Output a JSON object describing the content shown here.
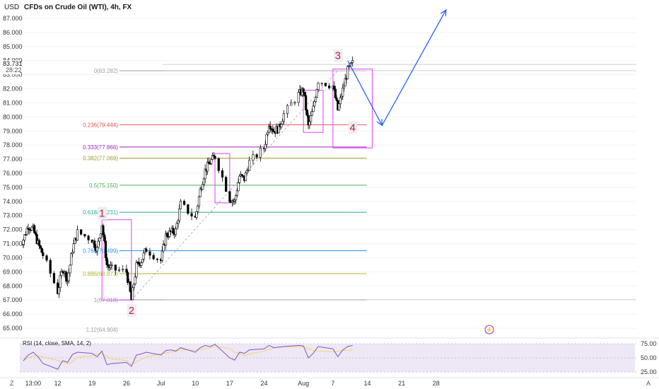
{
  "header": {
    "currency": "USD",
    "title": "CFDs on Crude Oil (WTI), 4h, FX"
  },
  "price_tags": {
    "last_price": "83.731",
    "countdown": "28:22"
  },
  "rsi_panel": {
    "title": "RSI (14, close, SMA, 14, 2)"
  },
  "footer": {
    "left_corner": "Z",
    "right_corner": "A"
  },
  "colors": {
    "up": "#ffffff",
    "down": "#000000",
    "wick": "#000000",
    "rsi_line": "#7e57c2",
    "rsi_band": "#ede7f6",
    "rsi_ma": "#f5d36b",
    "arrow": "#2962ff",
    "box": "#e040fb",
    "wave_label": "#c2185b"
  },
  "chart_data": {
    "type": "candlestick",
    "symbol": "CFDs on Crude Oil (WTI)",
    "interval": "4h",
    "ylim": [
      64.5,
      87.6
    ],
    "y_ticks": [
      "87.000",
      "86.000",
      "85.000",
      "84.000",
      "83.000",
      "82.000",
      "81.000",
      "80.000",
      "79.000",
      "78.000",
      "77.000",
      "76.000",
      "75.000",
      "74.000",
      "73.000",
      "72.000",
      "71.000",
      "70.000",
      "69.000",
      "68.000",
      "67.000",
      "66.000",
      "65.000"
    ],
    "x_ticks": [
      "13:00",
      "12",
      "19",
      "26",
      "Jul",
      "10",
      "17",
      "24",
      "Aug",
      "7",
      "14",
      "21",
      "28"
    ],
    "price_path": [
      {
        "date": "2023-06-05",
        "close": 71.3
      },
      {
        "date": "2023-06-06",
        "close": 72.3
      },
      {
        "date": "2023-06-07",
        "close": 72.0
      },
      {
        "date": "2023-06-08",
        "close": 71.0
      },
      {
        "date": "2023-06-09",
        "close": 70.2
      },
      {
        "date": "2023-06-12",
        "close": 67.6
      },
      {
        "date": "2023-06-13",
        "close": 69.3
      },
      {
        "date": "2023-06-14",
        "close": 68.4
      },
      {
        "date": "2023-06-15",
        "close": 70.6
      },
      {
        "date": "2023-06-16",
        "close": 71.8
      },
      {
        "date": "2023-06-19",
        "close": 71.3
      },
      {
        "date": "2023-06-20",
        "close": 70.6
      },
      {
        "date": "2023-06-21",
        "close": 72.4
      },
      {
        "date": "2023-06-22",
        "close": 69.5
      },
      {
        "date": "2023-06-23",
        "close": 69.2
      },
      {
        "date": "2023-06-26",
        "close": 69.0
      },
      {
        "date": "2023-06-27",
        "close": 67.0
      },
      {
        "date": "2023-06-28",
        "close": 69.4
      },
      {
        "date": "2023-06-29",
        "close": 69.8
      },
      {
        "date": "2023-06-30",
        "close": 70.6
      },
      {
        "date": "2023-07-03",
        "close": 69.8
      },
      {
        "date": "2023-07-04",
        "close": 71.6
      },
      {
        "date": "2023-07-05",
        "close": 71.8
      },
      {
        "date": "2023-07-06",
        "close": 71.9
      },
      {
        "date": "2023-07-07",
        "close": 73.8
      },
      {
        "date": "2023-07-10",
        "close": 72.8
      },
      {
        "date": "2023-07-11",
        "close": 74.8
      },
      {
        "date": "2023-07-12",
        "close": 76.2
      },
      {
        "date": "2023-07-13",
        "close": 76.8
      },
      {
        "date": "2023-07-14",
        "close": 77.2
      },
      {
        "date": "2023-07-17",
        "close": 74.2
      },
      {
        "date": "2023-07-18",
        "close": 74.0
      },
      {
        "date": "2023-07-19",
        "close": 75.8
      },
      {
        "date": "2023-07-20",
        "close": 75.6
      },
      {
        "date": "2023-07-21",
        "close": 76.8
      },
      {
        "date": "2023-07-24",
        "close": 77.8
      },
      {
        "date": "2023-07-25",
        "close": 79.6
      },
      {
        "date": "2023-07-26",
        "close": 79.0
      },
      {
        "date": "2023-07-27",
        "close": 79.2
      },
      {
        "date": "2023-07-28",
        "close": 80.2
      },
      {
        "date": "2023-07-31",
        "close": 81.6
      },
      {
        "date": "2023-08-01",
        "close": 81.9
      },
      {
        "date": "2023-08-02",
        "close": 79.3
      },
      {
        "date": "2023-08-03",
        "close": 80.6
      },
      {
        "date": "2023-08-04",
        "close": 82.6
      },
      {
        "date": "2023-08-07",
        "close": 82.2
      },
      {
        "date": "2023-08-08",
        "close": 80.5
      },
      {
        "date": "2023-08-09",
        "close": 81.9
      },
      {
        "date": "2023-08-10",
        "close": 83.3
      },
      {
        "date": "2023-08-11",
        "close": 83.8
      }
    ],
    "fib_levels": [
      {
        "label": "0(83.282)",
        "value": 83.282,
        "color": "#9e9e9e"
      },
      {
        "label": "0.236(79.444)",
        "value": 79.444,
        "color": "#ef5350"
      },
      {
        "label": "0.333(77.866)",
        "value": 77.866,
        "color": "#9c27b0"
      },
      {
        "label": "0.382(77.069)",
        "value": 77.069,
        "color": "#9e9d24"
      },
      {
        "label": "0.5(75.150)",
        "value": 75.15,
        "color": "#4caf50"
      },
      {
        "label": "0.618(73.231)",
        "value": 73.231,
        "color": "#26a69a"
      },
      {
        "label": "0.786(70.499)",
        "value": 70.499,
        "color": "#2196f3"
      },
      {
        "label": "0.886(68.873)",
        "value": 68.873,
        "color": "#aeb62b"
      },
      {
        "label": "1(67.018)",
        "value": 67.018,
        "color": "#9e9e9e"
      },
      {
        "label": "1.12(64.904)",
        "value": 64.904,
        "color": "#9e9e9e"
      }
    ],
    "wave_labels": [
      {
        "label": "1",
        "date": "2023-06-21",
        "price": 72.9
      },
      {
        "label": "2",
        "date": "2023-06-27",
        "price": 66.0
      },
      {
        "label": "3",
        "date": "2023-08-08",
        "price": 84.1
      },
      {
        "label": "4",
        "date": "2023-08-11",
        "price": 79.0
      }
    ],
    "projection": [
      {
        "date": "2023-08-10",
        "price": 84.0
      },
      {
        "date": "2023-08-17",
        "price": 79.4
      },
      {
        "date": "2023-08-30",
        "price": 87.6
      }
    ],
    "rsi": {
      "ylim": [
        20,
        80
      ],
      "levels": [
        75,
        50,
        25
      ],
      "values": [
        45,
        55,
        60,
        52,
        40,
        30,
        45,
        42,
        56,
        60,
        58,
        52,
        62,
        38,
        40,
        42,
        35,
        55,
        57,
        60,
        55,
        63,
        64,
        62,
        68,
        60,
        68,
        72,
        70,
        74,
        50,
        46,
        60,
        58,
        64,
        66,
        72,
        68,
        69,
        70,
        72,
        71,
        50,
        58,
        70,
        66,
        52,
        64,
        70,
        72
      ]
    }
  }
}
